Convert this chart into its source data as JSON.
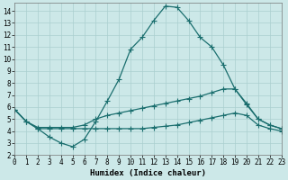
{
  "background_color": "#cce8e8",
  "grid_color": "#aacfcf",
  "line_color": "#1a6e6e",
  "xlim": [
    0,
    23
  ],
  "ylim": [
    2,
    14.7
  ],
  "xticks": [
    0,
    1,
    2,
    3,
    4,
    5,
    6,
    7,
    8,
    9,
    10,
    11,
    12,
    13,
    14,
    15,
    16,
    17,
    18,
    19,
    20,
    21,
    22,
    23
  ],
  "yticks": [
    2,
    3,
    4,
    5,
    6,
    7,
    8,
    9,
    10,
    11,
    12,
    13,
    14
  ],
  "xlabel": "Humidex (Indice chaleur)",
  "curve1_x": [
    0,
    1,
    2,
    3,
    4,
    5,
    6,
    7,
    8,
    9,
    10,
    11,
    12,
    13,
    14,
    15,
    16,
    17,
    18,
    19,
    20,
    21,
    22,
    23
  ],
  "curve1_y": [
    5.8,
    4.8,
    4.2,
    3.5,
    3.0,
    2.7,
    3.3,
    4.8,
    6.5,
    8.3,
    10.8,
    11.8,
    13.2,
    14.4,
    14.3,
    13.2,
    11.8,
    11.0,
    9.5,
    7.5,
    6.2,
    5.0,
    4.5,
    4.2
  ],
  "curve2_x": [
    0,
    1,
    2,
    3,
    4,
    5,
    6,
    7,
    8,
    9,
    10,
    11,
    12,
    13,
    14,
    15,
    16,
    17,
    18,
    19,
    20,
    21,
    22,
    23
  ],
  "curve2_y": [
    5.8,
    4.8,
    4.3,
    4.3,
    4.3,
    4.3,
    4.5,
    5.0,
    5.3,
    5.5,
    5.7,
    5.9,
    6.1,
    6.3,
    6.5,
    6.7,
    6.9,
    7.2,
    7.5,
    7.5,
    6.3,
    5.0,
    4.5,
    4.2
  ],
  "curve3_x": [
    0,
    1,
    2,
    3,
    4,
    5,
    6,
    7,
    8,
    9,
    10,
    11,
    12,
    13,
    14,
    15,
    16,
    17,
    18,
    19,
    20,
    21,
    22,
    23
  ],
  "curve3_y": [
    5.8,
    4.8,
    4.2,
    4.2,
    4.2,
    4.2,
    4.2,
    4.2,
    4.2,
    4.2,
    4.2,
    4.2,
    4.3,
    4.4,
    4.5,
    4.7,
    4.9,
    5.1,
    5.3,
    5.5,
    5.3,
    4.5,
    4.2,
    4.0
  ],
  "marker_size": 2.0,
  "line_width": 0.9,
  "font_size_label": 6.5,
  "font_size_tick": 5.5
}
